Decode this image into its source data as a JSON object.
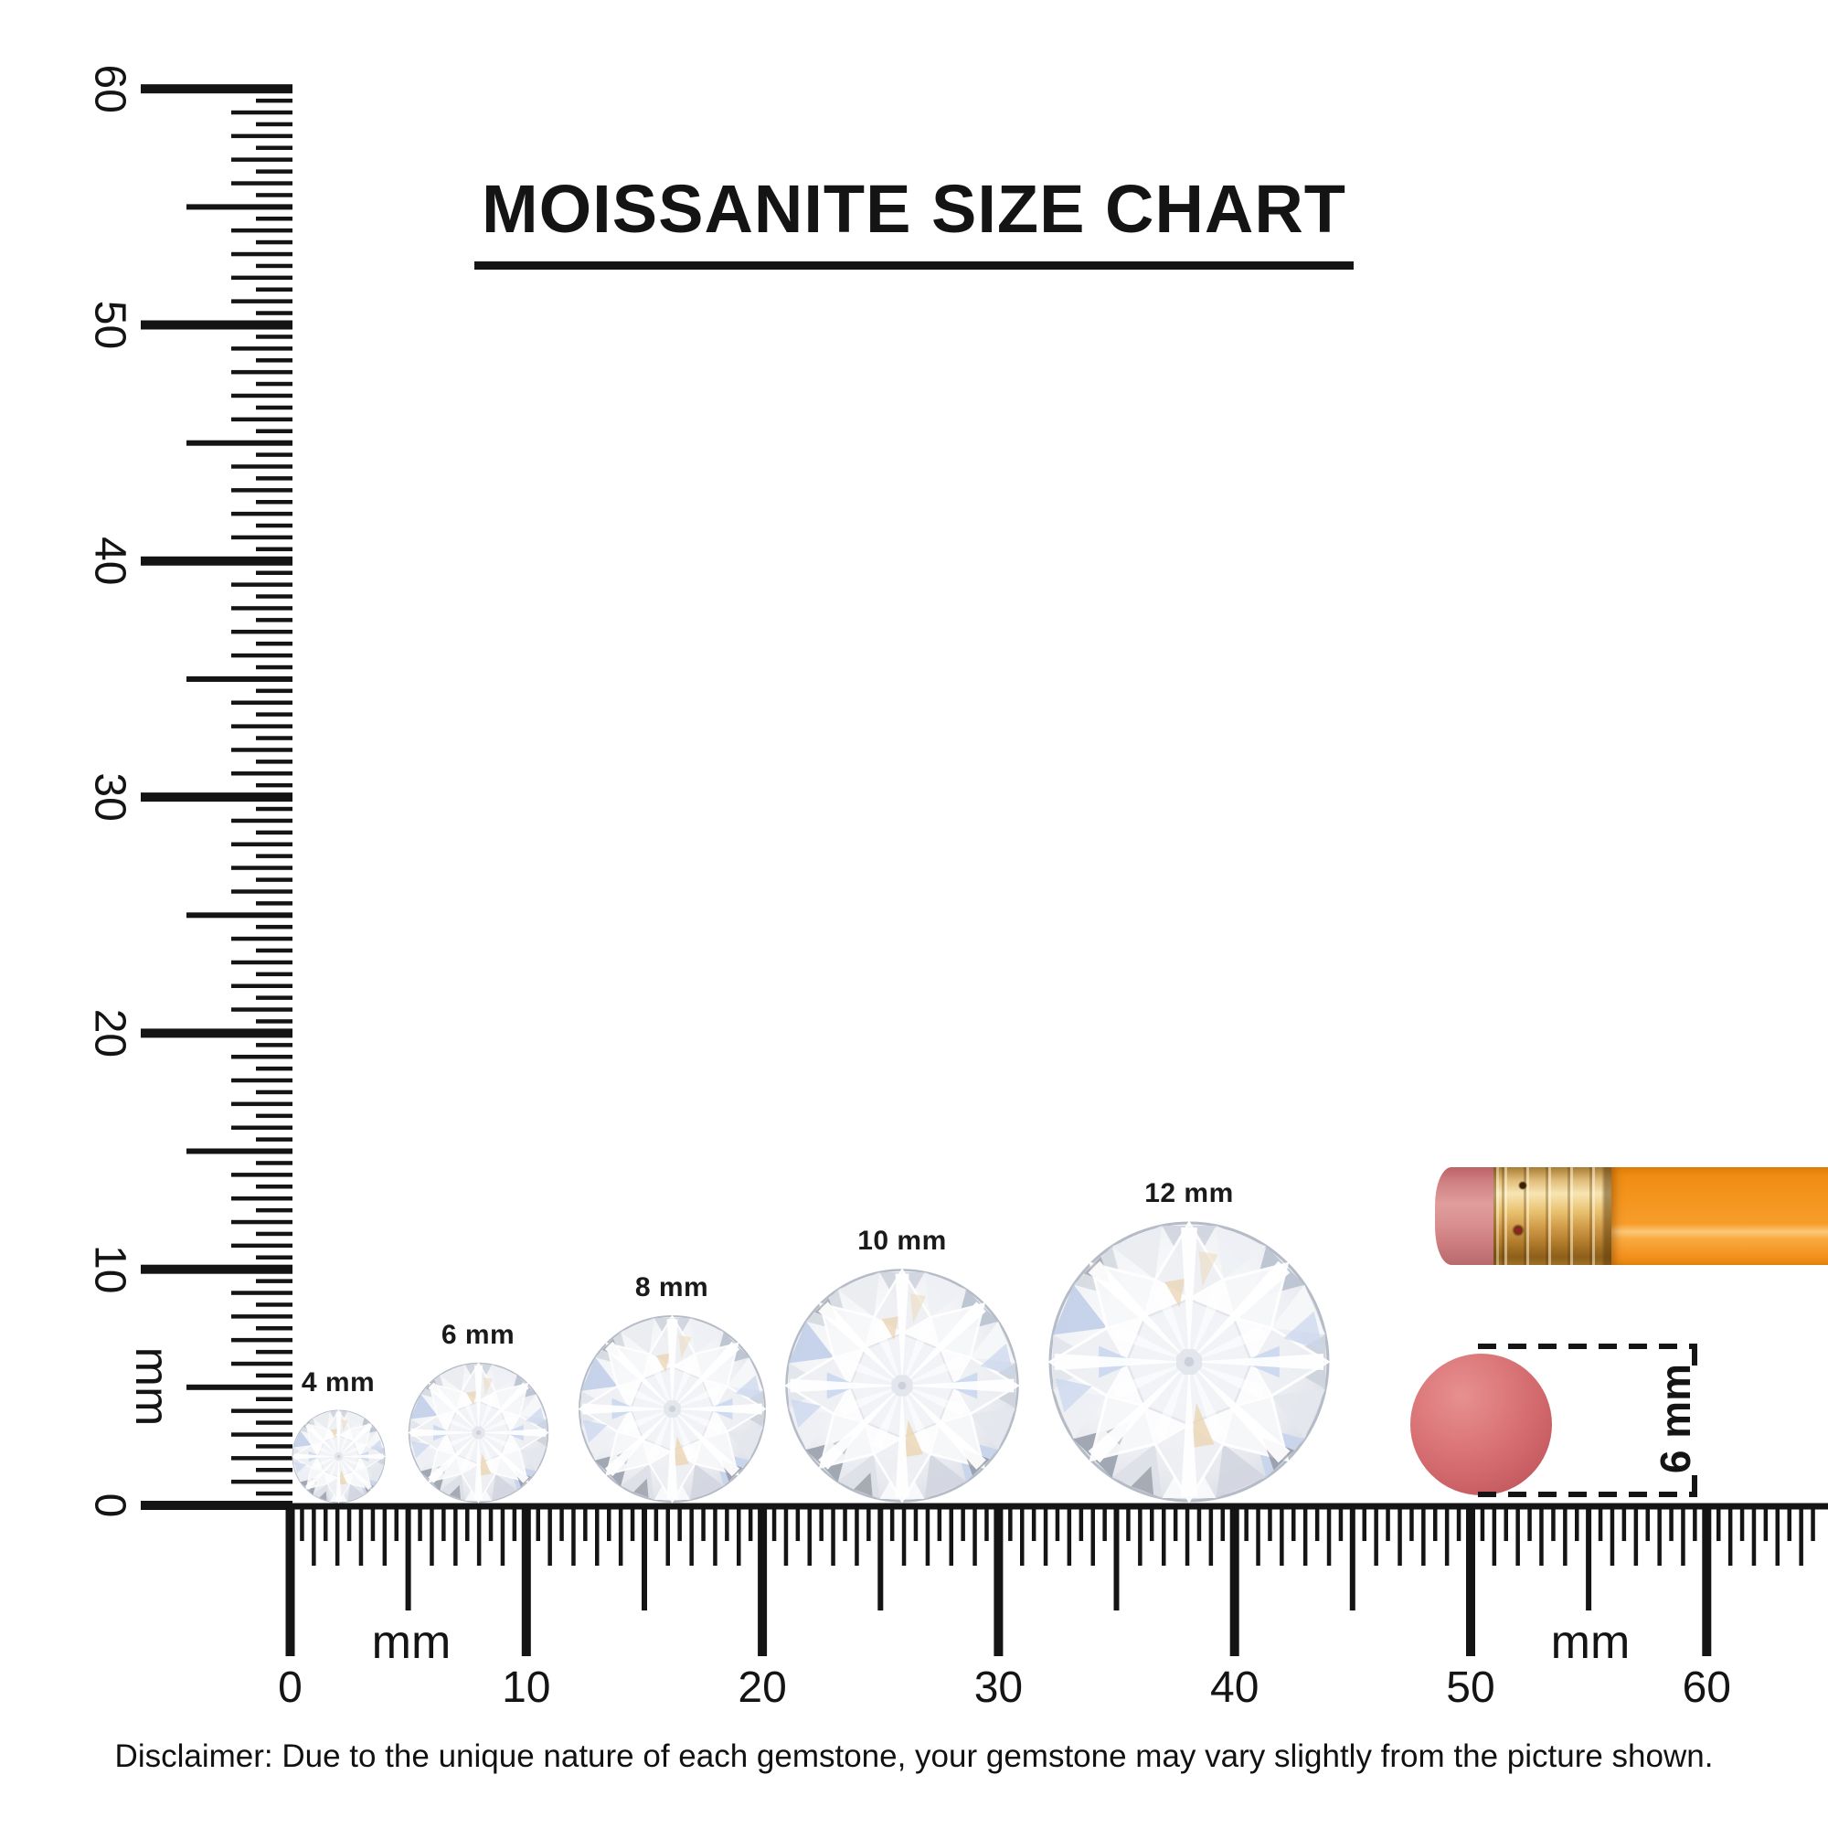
{
  "title": {
    "text": "MOISSANITE SIZE CHART"
  },
  "rulers": {
    "unit": "mm",
    "vertical": {
      "min_mm": 0,
      "max_mm": 60,
      "numbers": [
        "0",
        "10",
        "20",
        "30",
        "40",
        "50",
        "60"
      ],
      "unit_label": "mm"
    },
    "horizontal": {
      "min_mm": 0,
      "max_mm": 60,
      "numbers": [
        "0",
        "10",
        "20",
        "30",
        "40",
        "50",
        "60"
      ],
      "unit_labels": [
        "mm",
        "mm"
      ]
    }
  },
  "gems": [
    {
      "label": "4 mm",
      "size_mm": 4
    },
    {
      "label": "6 mm",
      "size_mm": 6
    },
    {
      "label": "8 mm",
      "size_mm": 8
    },
    {
      "label": "10 mm",
      "size_mm": 10
    },
    {
      "label": "12 mm",
      "size_mm": 12
    }
  ],
  "eraser_dot": {
    "label": "6 mm",
    "size_mm": 6,
    "color": "#d26a6e"
  },
  "pencil": {
    "body_color": "#f4961f",
    "ferrule_color": "#e9c270",
    "eraser_color": "#d98f90"
  },
  "disclaimer": {
    "text": "Disclaimer: Due to the unique nature of each gemstone, your gemstone may vary slightly from the picture shown."
  },
  "colors": {
    "ink": "#141414",
    "background": "#ffffff"
  }
}
